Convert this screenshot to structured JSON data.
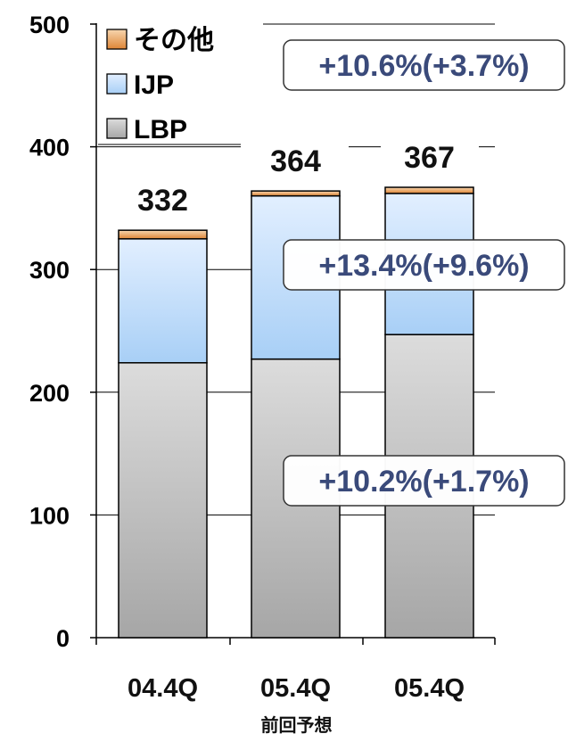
{
  "chart_data": {
    "type": "bar",
    "stacked": true,
    "categories": [
      "04.4Q",
      "05.4Q",
      "05.4Q"
    ],
    "category_sublabels": [
      "",
      "前回予想",
      ""
    ],
    "series": [
      {
        "name": "LBP",
        "values": [
          224,
          227,
          247
        ],
        "color_top": "#d8d8d8",
        "color_bottom": "#a8a8a8"
      },
      {
        "name": "IJP",
        "values": [
          101,
          133,
          115
        ],
        "color_top": "#dbe9ff",
        "color_bottom": "#a9d0f7"
      },
      {
        "name": "その他",
        "values": [
          7,
          4,
          5
        ],
        "color_top": "#f5d0a8",
        "color_bottom": "#e08a3a"
      }
    ],
    "totals": [
      332,
      364,
      367
    ],
    "ylim": [
      0,
      500
    ],
    "yticks": [
      0,
      100,
      200,
      300,
      400,
      500
    ],
    "grid": true,
    "legend_placement": "top-left",
    "legend_order": [
      "その他",
      "IJP",
      "LBP"
    ],
    "annotations": [
      {
        "text": "+10.6%(+3.7%)",
        "series": "その他"
      },
      {
        "text": "+13.4%(+9.6%)",
        "series": "IJP"
      },
      {
        "text": "+10.2%(+1.7%)",
        "series": "LBP"
      }
    ]
  }
}
